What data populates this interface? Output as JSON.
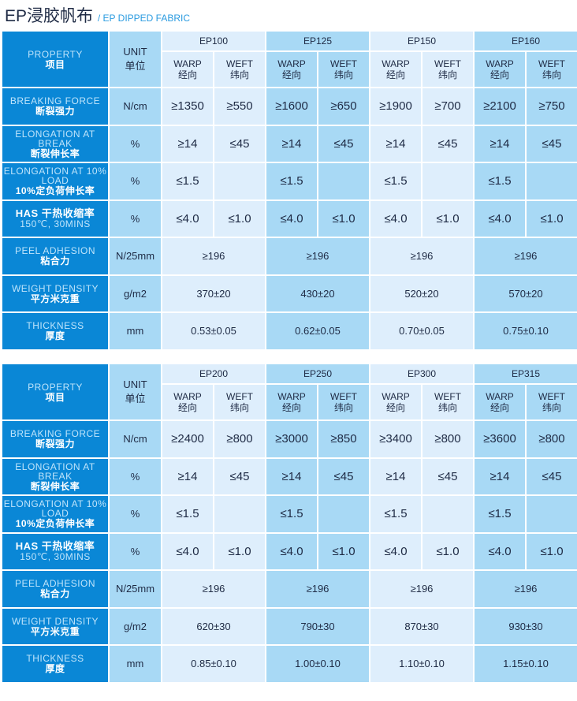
{
  "header": {
    "title": "EP浸胶帆布",
    "subtitle": "/ EP DIPPED FABRIC"
  },
  "labels": {
    "property": "PROPERTY",
    "property_cn": "项目",
    "unit": "UNIT",
    "unit_cn": "单位",
    "warp": "WARP",
    "warp_cn": "经向",
    "weft": "WEFT",
    "weft_cn": "纬向"
  },
  "rows": [
    {
      "en": "BREAKING FORCE",
      "cn": "断裂强力",
      "unit": "N/cm"
    },
    {
      "en": "ELONGATION AT BREAK",
      "cn": "断裂伸长率",
      "unit": "%"
    },
    {
      "en": "ELONGATION AT 10% LOAD",
      "cn": "10%定负荷伸长率",
      "unit": "%"
    },
    {
      "en": "HAS  干热收缩率",
      "cn": "150℃, 30MINS",
      "unit": "%"
    },
    {
      "en": "PEEL ADHESION",
      "cn": "粘合力",
      "unit": "N/25mm"
    },
    {
      "en": "WEIGHT DENSITY",
      "cn": "平方米克重",
      "unit": "g/m2"
    },
    {
      "en": "THICKNESS",
      "cn": "厚度",
      "unit": "mm"
    }
  ],
  "tables": [
    {
      "models": [
        {
          "name": "EP100",
          "values": [
            [
              "≥1350",
              "≥550"
            ],
            [
              "≥14",
              "≤45"
            ],
            [
              "≤1.5",
              ""
            ],
            [
              "≤4.0",
              "≤1.0"
            ],
            [
              "≥196"
            ],
            [
              "370±20"
            ],
            [
              "0.53±0.05"
            ]
          ]
        },
        {
          "name": "EP125",
          "values": [
            [
              "≥1600",
              "≥650"
            ],
            [
              "≥14",
              "≤45"
            ],
            [
              "≤1.5",
              ""
            ],
            [
              "≤4.0",
              "≤1.0"
            ],
            [
              "≥196"
            ],
            [
              "430±20"
            ],
            [
              "0.62±0.05"
            ]
          ]
        },
        {
          "name": "EP150",
          "values": [
            [
              "≥1900",
              "≥700"
            ],
            [
              "≥14",
              "≤45"
            ],
            [
              "≤1.5",
              ""
            ],
            [
              "≤4.0",
              "≤1.0"
            ],
            [
              "≥196"
            ],
            [
              "520±20"
            ],
            [
              "0.70±0.05"
            ]
          ]
        },
        {
          "name": "EP160",
          "values": [
            [
              "≥2100",
              "≥750"
            ],
            [
              "≥14",
              "≤45"
            ],
            [
              "≤1.5",
              ""
            ],
            [
              "≤4.0",
              "≤1.0"
            ],
            [
              "≥196"
            ],
            [
              "570±20"
            ],
            [
              "0.75±0.10"
            ]
          ]
        }
      ]
    },
    {
      "models": [
        {
          "name": "EP200",
          "values": [
            [
              "≥2400",
              "≥800"
            ],
            [
              "≥14",
              "≤45"
            ],
            [
              "≤1.5",
              ""
            ],
            [
              "≤4.0",
              "≤1.0"
            ],
            [
              "≥196"
            ],
            [
              "620±30"
            ],
            [
              "0.85±0.10"
            ]
          ]
        },
        {
          "name": "EP250",
          "values": [
            [
              "≥3000",
              "≥850"
            ],
            [
              "≥14",
              "≤45"
            ],
            [
              "≤1.5",
              ""
            ],
            [
              "≤4.0",
              "≤1.0"
            ],
            [
              "≥196"
            ],
            [
              "790±30"
            ],
            [
              "1.00±0.10"
            ]
          ]
        },
        {
          "name": "EP300",
          "values": [
            [
              "≥3400",
              "≥800"
            ],
            [
              "≥14",
              "≤45"
            ],
            [
              "≤1.5",
              ""
            ],
            [
              "≤4.0",
              "≤1.0"
            ],
            [
              "≥196"
            ],
            [
              "870±30"
            ],
            [
              "1.10±0.10"
            ]
          ]
        },
        {
          "name": "EP315",
          "values": [
            [
              "≥3600",
              "≥800"
            ],
            [
              "≥14",
              "≤45"
            ],
            [
              "≤1.5",
              ""
            ],
            [
              "≤4.0",
              "≤1.0"
            ],
            [
              "≥196"
            ],
            [
              "930±30"
            ],
            [
              "1.15±0.10"
            ]
          ]
        }
      ]
    }
  ]
}
